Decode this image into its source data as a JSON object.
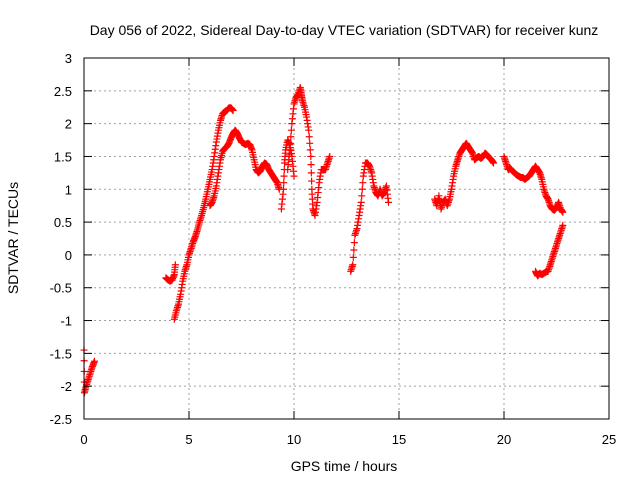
{
  "chart_data": {
    "type": "scatter",
    "title": "Day 056 of 2022, Sidereal Day-to-day VTEC variation (SDTVAR) for receiver kunz",
    "xlabel": "GPS time / hours",
    "ylabel": "SDTVAR / TECUs",
    "xlim": [
      0,
      25
    ],
    "ylim": [
      -2.5,
      3
    ],
    "xticks": [
      "0",
      "5",
      "10",
      "15",
      "20",
      "25"
    ],
    "yticks": [
      "-2.5",
      "-2",
      "-1.5",
      "-1",
      "-0.5",
      "0",
      "0.5",
      "1",
      "1.5",
      "2",
      "2.5",
      "3"
    ],
    "grid": true,
    "marker": "plus",
    "colors": {
      "series": "#ff0000",
      "grid": "#a0a0a0",
      "axis": "#000000"
    },
    "segments": [
      {
        "points": [
          [
            0.0,
            -1.45
          ],
          [
            0.02,
            -2.1
          ],
          [
            0.1,
            -2.0
          ],
          [
            0.2,
            -1.9
          ],
          [
            0.3,
            -1.8
          ],
          [
            0.4,
            -1.7
          ],
          [
            0.5,
            -1.62
          ]
        ]
      },
      {
        "points": [
          [
            3.9,
            -0.35
          ],
          [
            4.0,
            -0.38
          ],
          [
            4.1,
            -0.4
          ],
          [
            4.2,
            -0.38
          ],
          [
            4.3,
            -0.3
          ],
          [
            4.35,
            -0.15
          ]
        ]
      },
      {
        "points": [
          [
            4.3,
            -0.98
          ],
          [
            4.4,
            -0.85
          ],
          [
            4.5,
            -0.75
          ],
          [
            4.6,
            -0.6
          ],
          [
            4.7,
            -0.4
          ],
          [
            4.8,
            -0.25
          ],
          [
            4.9,
            -0.15
          ],
          [
            5.0,
            0.0
          ],
          [
            5.1,
            0.1
          ],
          [
            5.2,
            0.2
          ],
          [
            5.3,
            0.28
          ],
          [
            5.4,
            0.38
          ],
          [
            5.5,
            0.5
          ],
          [
            5.6,
            0.6
          ],
          [
            5.7,
            0.72
          ],
          [
            5.8,
            0.85
          ],
          [
            5.9,
            1.0
          ],
          [
            6.0,
            1.15
          ],
          [
            6.1,
            1.3
          ],
          [
            6.2,
            1.5
          ],
          [
            6.3,
            1.72
          ],
          [
            6.4,
            1.9
          ],
          [
            6.5,
            2.05
          ],
          [
            6.6,
            2.15
          ],
          [
            6.7,
            2.18
          ],
          [
            6.8,
            2.2
          ],
          [
            6.9,
            2.24
          ],
          [
            7.0,
            2.24
          ],
          [
            7.1,
            2.2
          ]
        ]
      },
      {
        "points": [
          [
            6.0,
            0.75
          ],
          [
            6.1,
            0.8
          ],
          [
            6.2,
            0.9
          ],
          [
            6.3,
            1.05
          ],
          [
            6.4,
            1.25
          ],
          [
            6.5,
            1.45
          ],
          [
            6.6,
            1.58
          ],
          [
            6.7,
            1.62
          ],
          [
            6.8,
            1.65
          ],
          [
            6.9,
            1.7
          ],
          [
            7.0,
            1.78
          ],
          [
            7.1,
            1.85
          ],
          [
            7.2,
            1.9
          ],
          [
            7.3,
            1.85
          ],
          [
            7.4,
            1.78
          ],
          [
            7.5,
            1.72
          ],
          [
            7.6,
            1.7
          ],
          [
            7.7,
            1.68
          ],
          [
            7.8,
            1.7
          ],
          [
            7.9,
            1.68
          ],
          [
            8.0,
            1.6
          ],
          [
            8.1,
            1.45
          ],
          [
            8.2,
            1.3
          ],
          [
            8.3,
            1.25
          ],
          [
            8.4,
            1.28
          ],
          [
            8.5,
            1.35
          ],
          [
            8.6,
            1.4
          ],
          [
            8.7,
            1.38
          ],
          [
            8.8,
            1.3
          ],
          [
            8.9,
            1.25
          ],
          [
            9.0,
            1.2
          ],
          [
            9.1,
            1.15
          ],
          [
            9.2,
            1.1
          ],
          [
            9.3,
            1.0
          ]
        ]
      },
      {
        "points": [
          [
            9.4,
            0.7
          ],
          [
            9.5,
            1.0
          ],
          [
            9.55,
            1.4
          ],
          [
            9.6,
            1.6
          ],
          [
            9.7,
            1.75
          ],
          [
            9.8,
            1.68
          ],
          [
            9.9,
            1.5
          ],
          [
            10.0,
            1.2
          ]
        ]
      },
      {
        "points": [
          [
            9.7,
            1.3
          ],
          [
            9.8,
            1.6
          ],
          [
            9.9,
            2.0
          ],
          [
            10.0,
            2.3
          ],
          [
            10.1,
            2.4
          ],
          [
            10.2,
            2.45
          ],
          [
            10.3,
            2.55
          ],
          [
            10.35,
            2.45
          ],
          [
            10.4,
            2.35
          ],
          [
            10.5,
            2.25
          ],
          [
            10.6,
            2.1
          ],
          [
            10.7,
            1.9
          ],
          [
            10.8,
            1.5
          ],
          [
            10.85,
            1.0
          ],
          [
            10.9,
            0.7
          ],
          [
            11.0,
            0.6
          ],
          [
            11.1,
            0.8
          ],
          [
            11.2,
            1.1
          ],
          [
            11.3,
            1.3
          ],
          [
            11.4,
            1.3
          ],
          [
            11.5,
            1.3
          ],
          [
            11.6,
            1.4
          ],
          [
            11.7,
            1.5
          ]
        ]
      },
      {
        "points": [
          [
            12.7,
            -0.25
          ],
          [
            12.8,
            -0.15
          ],
          [
            12.9,
            0.3
          ],
          [
            13.0,
            0.4
          ],
          [
            13.1,
            0.6
          ],
          [
            13.2,
            0.8
          ],
          [
            13.3,
            1.2
          ],
          [
            13.4,
            1.4
          ],
          [
            13.5,
            1.4
          ],
          [
            13.6,
            1.35
          ],
          [
            13.7,
            1.25
          ],
          [
            13.8,
            1.05
          ],
          [
            13.9,
            0.95
          ],
          [
            14.0,
            0.9
          ],
          [
            14.1,
            1.0
          ],
          [
            14.2,
            0.9
          ],
          [
            14.3,
            0.95
          ],
          [
            14.4,
            1.05
          ],
          [
            14.5,
            0.8
          ]
        ]
      },
      {
        "points": [
          [
            16.7,
            0.85
          ],
          [
            16.8,
            0.75
          ],
          [
            16.9,
            0.9
          ],
          [
            17.0,
            0.7
          ],
          [
            17.1,
            0.8
          ],
          [
            17.2,
            0.85
          ],
          [
            17.3,
            0.75
          ],
          [
            17.4,
            0.85
          ],
          [
            17.5,
            1.0
          ],
          [
            17.6,
            1.2
          ],
          [
            17.7,
            1.35
          ],
          [
            17.8,
            1.45
          ],
          [
            17.9,
            1.55
          ],
          [
            18.0,
            1.6
          ],
          [
            18.1,
            1.65
          ],
          [
            18.2,
            1.7
          ],
          [
            18.3,
            1.65
          ],
          [
            18.4,
            1.6
          ],
          [
            18.5,
            1.55
          ],
          [
            18.6,
            1.45
          ],
          [
            18.7,
            1.48
          ],
          [
            18.8,
            1.5
          ],
          [
            18.9,
            1.47
          ],
          [
            19.0,
            1.5
          ],
          [
            19.1,
            1.55
          ],
          [
            19.2,
            1.52
          ],
          [
            19.3,
            1.48
          ],
          [
            19.4,
            1.45
          ],
          [
            19.5,
            1.4
          ]
        ]
      },
      {
        "points": [
          [
            20.0,
            1.5
          ],
          [
            20.1,
            1.4
          ],
          [
            20.2,
            1.3
          ],
          [
            20.3,
            1.32
          ],
          [
            20.4,
            1.28
          ],
          [
            20.5,
            1.25
          ],
          [
            20.6,
            1.22
          ],
          [
            20.7,
            1.2
          ],
          [
            20.8,
            1.18
          ],
          [
            20.9,
            1.18
          ],
          [
            21.0,
            1.15
          ],
          [
            21.1,
            1.18
          ],
          [
            21.2,
            1.2
          ],
          [
            21.3,
            1.25
          ],
          [
            21.4,
            1.3
          ],
          [
            21.5,
            1.35
          ],
          [
            21.6,
            1.3
          ],
          [
            21.7,
            1.25
          ],
          [
            21.8,
            1.15
          ],
          [
            21.9,
            1.0
          ],
          [
            22.0,
            0.9
          ],
          [
            22.1,
            0.85
          ],
          [
            22.2,
            0.75
          ],
          [
            22.3,
            0.7
          ],
          [
            22.4,
            0.68
          ],
          [
            22.5,
            0.72
          ],
          [
            22.6,
            0.8
          ],
          [
            22.7,
            0.7
          ],
          [
            22.8,
            0.65
          ]
        ]
      },
      {
        "points": [
          [
            21.5,
            -0.25
          ],
          [
            21.6,
            -0.32
          ],
          [
            21.7,
            -0.28
          ],
          [
            21.8,
            -0.3
          ],
          [
            21.9,
            -0.28
          ],
          [
            22.0,
            -0.26
          ],
          [
            22.1,
            -0.25
          ],
          [
            22.2,
            -0.15
          ],
          [
            22.3,
            -0.05
          ],
          [
            22.4,
            0.05
          ],
          [
            22.5,
            0.15
          ],
          [
            22.6,
            0.25
          ],
          [
            22.7,
            0.35
          ],
          [
            22.8,
            0.45
          ]
        ]
      }
    ]
  }
}
